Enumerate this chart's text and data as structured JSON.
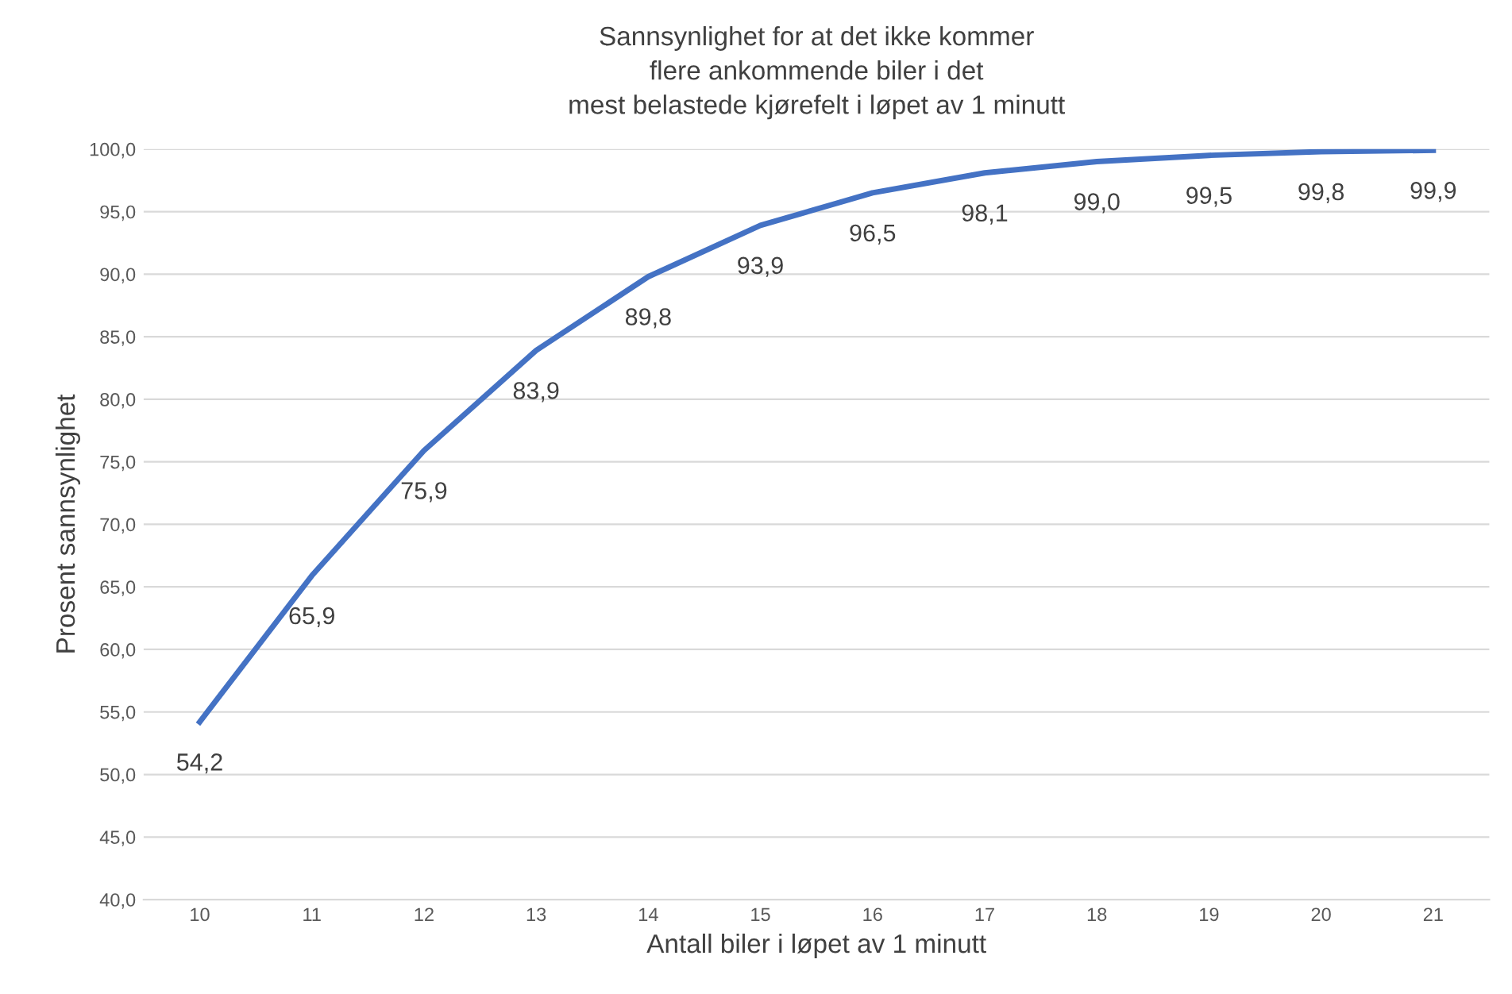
{
  "chart_data": {
    "type": "line",
    "title": "Sannsynlighet for at det ikke kommer\nflere ankommende biler i det\nmest belastede kjørefelt i løpet av 1 minutt",
    "xlabel": "Antall biler i løpet av 1 minutt",
    "ylabel": "Prosent sannsynlighet",
    "categories": [
      "10",
      "11",
      "12",
      "13",
      "14",
      "15",
      "16",
      "17",
      "18",
      "19",
      "20",
      "21"
    ],
    "series": [
      {
        "color": "#4472c4",
        "values": [
          54.2,
          65.9,
          75.9,
          83.9,
          89.8,
          93.9,
          96.5,
          98.1,
          99.0,
          99.5,
          99.8,
          99.9
        ],
        "value_labels": [
          "54,2",
          "65,9",
          "75,9",
          "83,9",
          "89,8",
          "93,9",
          "96,5",
          "98,1",
          "99,0",
          "99,5",
          "99,8",
          "99,9"
        ]
      }
    ],
    "ylim": [
      40,
      100
    ],
    "yticks": [
      {
        "value": 40,
        "label": "40,0"
      },
      {
        "value": 45,
        "label": "45,0"
      },
      {
        "value": 50,
        "label": "50,0"
      },
      {
        "value": 55,
        "label": "55,0"
      },
      {
        "value": 60,
        "label": "60,0"
      },
      {
        "value": 65,
        "label": "65,0"
      },
      {
        "value": 70,
        "label": "70,0"
      },
      {
        "value": 75,
        "label": "75,0"
      },
      {
        "value": 80,
        "label": "80,0"
      },
      {
        "value": 85,
        "label": "85,0"
      },
      {
        "value": 90,
        "label": "90,0"
      },
      {
        "value": 95,
        "label": "95,0"
      },
      {
        "value": 100,
        "label": "100,0"
      }
    ],
    "grid": "y",
    "marker": "none",
    "line_style": "solid"
  }
}
